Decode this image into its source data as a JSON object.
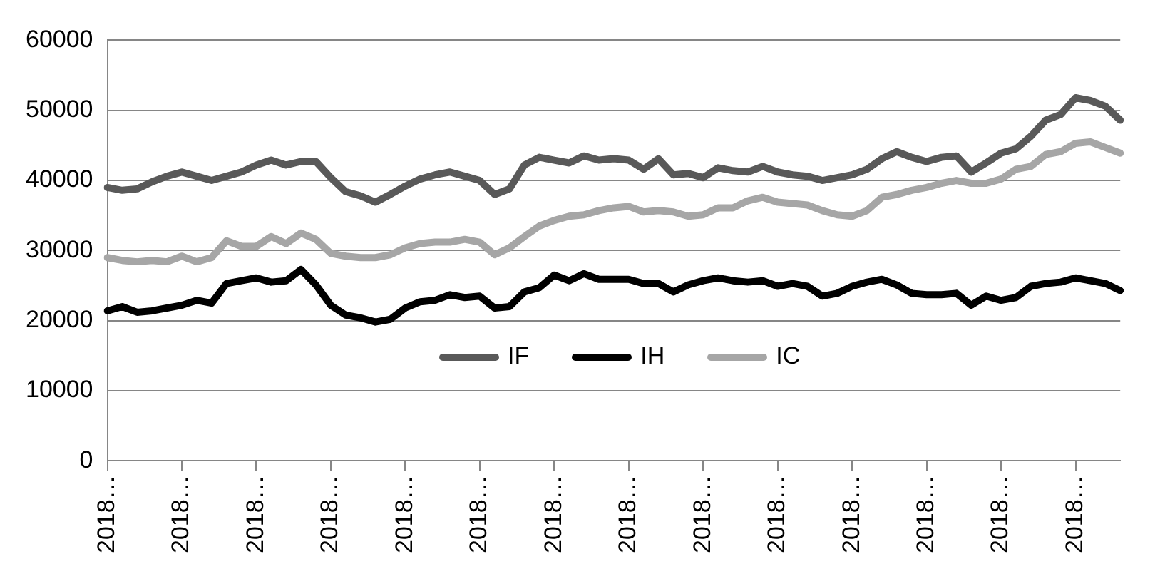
{
  "chart_data": {
    "type": "line",
    "categories": [
      "2018…",
      null,
      null,
      null,
      null,
      "2018…",
      null,
      null,
      null,
      null,
      "2018…",
      null,
      null,
      null,
      null,
      "2018…",
      null,
      null,
      null,
      null,
      "2018…",
      null,
      null,
      null,
      null,
      "2018…",
      null,
      null,
      null,
      null,
      "2018…",
      null,
      null,
      null,
      null,
      "2018…",
      null,
      null,
      null,
      null,
      "2018…",
      null,
      null,
      null,
      null,
      "2018…",
      null,
      null,
      null,
      null,
      "2018…",
      null,
      null,
      null,
      null,
      "2018…",
      null,
      null,
      null,
      null,
      "2018…",
      null,
      null,
      null,
      null,
      "2018…",
      null,
      null,
      null
    ],
    "series": [
      {
        "name": "IF",
        "color": "#595959",
        "values": [
          39000,
          38600,
          38800,
          39800,
          40600,
          41200,
          40600,
          40000,
          40600,
          41200,
          42200,
          42900,
          42200,
          42700,
          42700,
          40400,
          38400,
          37800,
          36900,
          38000,
          39200,
          40200,
          40800,
          41200,
          40600,
          40000,
          38000,
          38800,
          42200,
          43300,
          42900,
          42500,
          43500,
          42900,
          43100,
          42900,
          41600,
          43100,
          40800,
          41000,
          40400,
          41800,
          41400,
          41200,
          42000,
          41200,
          40800,
          40600,
          40000,
          40400,
          40800,
          41600,
          43100,
          44100,
          43300,
          42700,
          43300,
          43500,
          41200,
          42500,
          43900,
          44500,
          46300,
          48600,
          49400,
          51800,
          51400,
          50600,
          48600
        ]
      },
      {
        "name": "IH",
        "color": "#000000",
        "values": [
          21400,
          22000,
          21200,
          21400,
          21800,
          22200,
          22900,
          22500,
          25300,
          25700,
          26100,
          25500,
          25700,
          27300,
          25100,
          22200,
          20800,
          20400,
          19800,
          20200,
          21800,
          22700,
          22900,
          23700,
          23300,
          23500,
          21800,
          22000,
          24100,
          24700,
          26500,
          25700,
          26700,
          25900,
          25900,
          25900,
          25300,
          25300,
          24100,
          25100,
          25700,
          26100,
          25700,
          25500,
          25700,
          24900,
          25300,
          24900,
          23500,
          23900,
          24900,
          25500,
          25900,
          25100,
          23900,
          23700,
          23700,
          23900,
          22200,
          23500,
          22900,
          23300,
          24900,
          25300,
          25500,
          26100,
          25700,
          25300,
          24300
        ]
      },
      {
        "name": "IC",
        "color": "#a6a6a6",
        "values": [
          29000,
          28600,
          28400,
          28600,
          28400,
          29200,
          28400,
          29000,
          31400,
          30600,
          30600,
          32000,
          31000,
          32500,
          31600,
          29600,
          29200,
          29000,
          29000,
          29400,
          30400,
          31000,
          31200,
          31200,
          31600,
          31200,
          29400,
          30400,
          32000,
          33500,
          34300,
          34900,
          35100,
          35700,
          36100,
          36300,
          35500,
          35700,
          35500,
          34900,
          35100,
          36100,
          36100,
          37100,
          37600,
          36900,
          36700,
          36500,
          35700,
          35100,
          34900,
          35700,
          37600,
          38000,
          38600,
          39000,
          39600,
          40000,
          39600,
          39600,
          40200,
          41600,
          42000,
          43700,
          44100,
          45300,
          45500,
          44700,
          43900
        ]
      }
    ],
    "ylim": [
      0,
      60000
    ],
    "yticks": [
      0,
      10000,
      20000,
      30000,
      40000,
      50000,
      60000
    ],
    "grid": "y",
    "legend": "bottom",
    "marker": "none",
    "line_style": "solid"
  }
}
